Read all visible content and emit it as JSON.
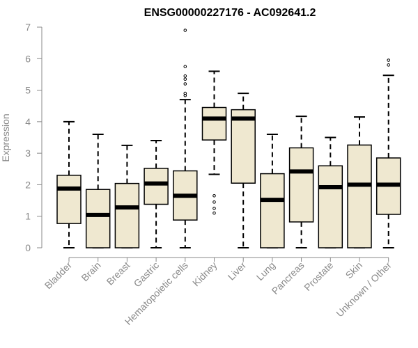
{
  "chart_data": {
    "type": "boxplot",
    "title": "ENSG00000227176 - AC092641.2",
    "ylabel": "Expression",
    "ylim": [
      0,
      7
    ],
    "yticks": [
      "0",
      "1",
      "2",
      "3",
      "4",
      "5",
      "6",
      "7"
    ],
    "grid": false,
    "box_color": "#efe8d0",
    "categories": [
      {
        "name": "Bladder",
        "whisker_low": 0,
        "q1": 0.77,
        "median": 1.88,
        "q3": 2.3,
        "whisker_high": 4.0,
        "outliers": []
      },
      {
        "name": "Brain",
        "whisker_low": 0,
        "q1": 0,
        "median": 1.04,
        "q3": 1.85,
        "whisker_high": 3.6,
        "outliers": []
      },
      {
        "name": "Breast",
        "whisker_low": 0,
        "q1": 0,
        "median": 1.28,
        "q3": 2.04,
        "whisker_high": 3.25,
        "outliers": []
      },
      {
        "name": "Gastric",
        "whisker_low": 0,
        "q1": 1.38,
        "median": 2.04,
        "q3": 2.52,
        "whisker_high": 3.4,
        "outliers": []
      },
      {
        "name": "Hematopoietic cells",
        "whisker_low": 0,
        "q1": 0.88,
        "median": 1.65,
        "q3": 2.44,
        "whisker_high": 4.7,
        "outliers": [
          4.83,
          4.9,
          5.2,
          5.35,
          5.45,
          5.75,
          6.9
        ]
      },
      {
        "name": "Kidney",
        "whisker_low": 2.33,
        "q1": 3.42,
        "median": 4.1,
        "q3": 4.45,
        "whisker_high": 5.6,
        "outliers": [
          1.1,
          1.25,
          1.45,
          1.65
        ]
      },
      {
        "name": "Liver",
        "whisker_low": 0,
        "q1": 2.05,
        "median": 4.1,
        "q3": 4.38,
        "whisker_high": 4.9,
        "outliers": []
      },
      {
        "name": "Lung",
        "whisker_low": 0,
        "q1": 0,
        "median": 1.52,
        "q3": 2.35,
        "whisker_high": 3.6,
        "outliers": []
      },
      {
        "name": "Pancreas",
        "whisker_low": 0,
        "q1": 0.82,
        "median": 2.42,
        "q3": 3.17,
        "whisker_high": 4.17,
        "outliers": []
      },
      {
        "name": "Prostate",
        "whisker_low": 0,
        "q1": 0,
        "median": 1.92,
        "q3": 2.6,
        "whisker_high": 3.5,
        "outliers": []
      },
      {
        "name": "Skin",
        "whisker_low": 0,
        "q1": 0,
        "median": 2.0,
        "q3": 3.26,
        "whisker_high": 4.15,
        "outliers": []
      },
      {
        "name": "Unknown / Other",
        "whisker_low": 0,
        "q1": 1.06,
        "median": 2.0,
        "q3": 2.85,
        "whisker_high": 5.47,
        "outliers": [
          5.8,
          5.95
        ]
      }
    ]
  }
}
